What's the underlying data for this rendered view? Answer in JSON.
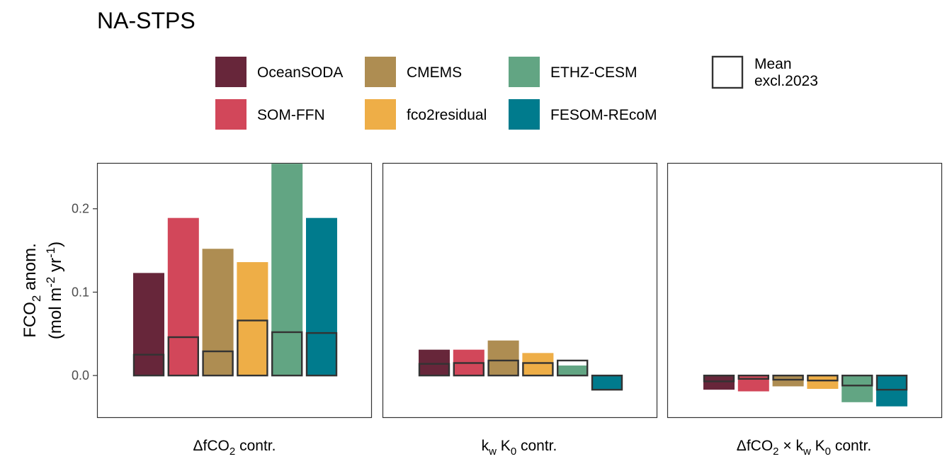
{
  "chart_data": {
    "type": "bar",
    "title": "NA-STPS",
    "ylabel_line1": "FCO2 anom.",
    "ylabel_line2": "(mol m-2 yr-1)",
    "ylim": [
      -0.05,
      0.255
    ],
    "yticks": [
      0.0,
      0.1,
      0.2
    ],
    "ytick_labels": [
      "0.0",
      "0.1",
      "0.2"
    ],
    "grid": false,
    "legend_position": "top",
    "legend_extra": {
      "line1": "Mean",
      "line2": "excl.2023"
    },
    "panels": [
      {
        "label": "ΔfCO2 contr.",
        "label_base": "ΔfCO",
        "label_sub": "2",
        "label_rest": " contr.",
        "values": [
          0.123,
          0.189,
          0.152,
          0.136,
          0.254,
          0.189
        ],
        "mean_excl_2023": [
          0.025,
          0.046,
          0.029,
          0.066,
          0.052,
          0.051
        ]
      },
      {
        "label": "kw K0 contr.",
        "values": [
          0.031,
          0.031,
          0.042,
          0.027,
          0.012,
          -0.017
        ],
        "mean_excl_2023": [
          0.014,
          0.015,
          0.018,
          0.015,
          0.018,
          -0.017
        ]
      },
      {
        "label": "ΔfCO2 × kw K0 contr.",
        "values": [
          -0.017,
          -0.019,
          -0.013,
          -0.016,
          -0.032,
          -0.037
        ],
        "mean_excl_2023": [
          -0.007,
          -0.004,
          -0.005,
          -0.006,
          -0.012,
          -0.017
        ]
      }
    ],
    "series": [
      {
        "name": "OceanSODA",
        "color": "#67263a"
      },
      {
        "name": "SOM-FFN",
        "color": "#d2475a"
      },
      {
        "name": "CMEMS",
        "color": "#ae8d52"
      },
      {
        "name": "fco2residual",
        "color": "#eeae47"
      },
      {
        "name": "ETHZ-CESM",
        "color": "#62a583"
      },
      {
        "name": "FESOM-REcoM",
        "color": "#007b8d"
      }
    ]
  }
}
